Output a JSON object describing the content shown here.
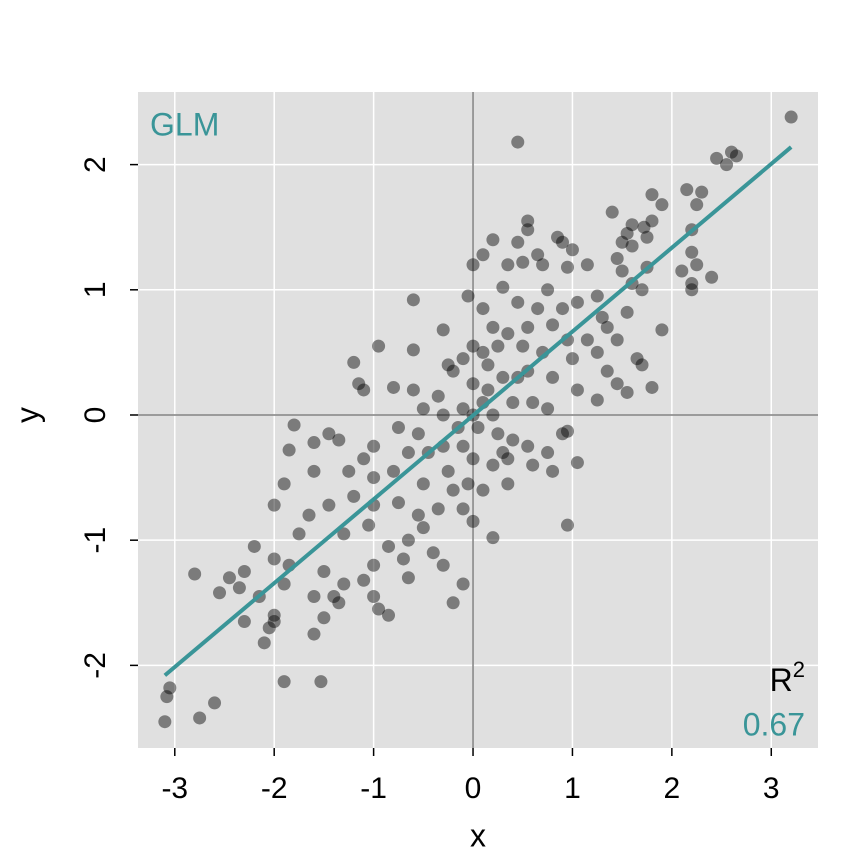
{
  "chart_data": {
    "type": "scatter",
    "x_label": "x",
    "y_label": "y",
    "xlim": [
      -3.37,
      3.47
    ],
    "ylim": [
      -2.66,
      2.58
    ],
    "xticks": [
      -3,
      -2,
      -1,
      0,
      1,
      2,
      3
    ],
    "yticks": [
      -2,
      -1,
      0,
      1,
      2
    ],
    "grid": true,
    "hlines": [
      0
    ],
    "vlines": [
      0
    ],
    "color": "#000000",
    "x": [
      3.2,
      0.45,
      2.6,
      2.65,
      2.45,
      2.55,
      2.15,
      2.3,
      1.8,
      1.9,
      2.25,
      1.4,
      1.6,
      1.72,
      1.55,
      1.8,
      2.2,
      0.55,
      0.55,
      0.45,
      0.85,
      0.9,
      0.2,
      0.35,
      0.5,
      0.65,
      0.7,
      1.0,
      0.95,
      1.15,
      1.5,
      1.6,
      1.75,
      1.45,
      1.5,
      1.75,
      2.2,
      2.25,
      2.1,
      2.4,
      2.2,
      2.2,
      1.6,
      1.9,
      1.35,
      1.55,
      1.25,
      0.0,
      0.1,
      0.3,
      -0.6,
      -0.05,
      0.1,
      0.45,
      0.65,
      0.75,
      0.9,
      1.05,
      0.8,
      0.55,
      0.35,
      0.2,
      -0.3,
      -0.6,
      -1.2,
      -0.95,
      -1.15,
      -1.1,
      -0.8,
      -0.6,
      0.1,
      0.5,
      0.7,
      0.95,
      1.15,
      1.25,
      1.45,
      1.65,
      1.7,
      1.8,
      1.55,
      1.35,
      1.05,
      1.25,
      0.8,
      0.55,
      0.3,
      0.15,
      0.0,
      -0.2,
      -0.35,
      -0.5,
      -0.1,
      0.2,
      0.4,
      0.6,
      0.75,
      0.4,
      0.25,
      0.05,
      -0.15,
      -0.3,
      -0.55,
      -0.75,
      -0.65,
      -1.0,
      -1.1,
      -1.45,
      -1.8,
      -1.85,
      -1.6,
      -1.35,
      -1.9,
      -1.6,
      -1.25,
      -1.0,
      -0.8,
      -0.5,
      -0.25,
      0.0,
      0.2,
      0.35,
      0.6,
      0.75,
      0.9,
      0.95,
      1.05,
      0.8,
      0.95,
      0.2,
      0.0,
      -0.1,
      -0.35,
      -0.55,
      -0.75,
      -1.0,
      -1.2,
      -1.45,
      -1.65,
      -2.0,
      -1.75,
      -1.3,
      -1.05,
      -0.85,
      -0.65,
      -0.4,
      -0.3,
      -0.1,
      -0.2,
      -1.0,
      -1.1,
      -1.3,
      -1.5,
      -1.85,
      -1.9,
      -2.2,
      -2.3,
      -2.45,
      -2.0,
      -1.6,
      -1.4,
      -1.0,
      -0.95,
      -0.85,
      -1.5,
      -1.6,
      -1.35,
      -2.0,
      -2.05,
      -2.0,
      -2.3,
      -2.55,
      -2.35,
      -2.15,
      -2.1,
      -2.8,
      -3.05,
      -3.08,
      -3.1,
      -2.75,
      -2.6,
      -1.9,
      -1.53,
      -0.65,
      -0.7,
      -0.5,
      0.55,
      0.35,
      0.1,
      -0.05,
      -0.2,
      0.3,
      -0.45,
      -0.3,
      -0.1,
      0.1,
      0.15,
      -0.1,
      0.25,
      0.0,
      -0.25,
      0.45,
      1.45,
      1.0,
      1.3,
      1.7,
      0.0
    ],
    "values": [
      2.38,
      2.18,
      2.1,
      2.07,
      2.05,
      2.0,
      1.8,
      1.78,
      1.76,
      1.68,
      1.68,
      1.62,
      1.52,
      1.5,
      1.45,
      1.55,
      1.48,
      1.55,
      1.48,
      1.38,
      1.42,
      1.38,
      1.4,
      1.2,
      1.22,
      1.28,
      1.2,
      1.32,
      1.18,
      1.2,
      1.38,
      1.35,
      1.42,
      1.25,
      1.15,
      1.18,
      1.3,
      1.2,
      1.15,
      1.1,
      1.05,
      1.0,
      1.05,
      0.68,
      0.7,
      0.82,
      0.95,
      1.2,
      1.28,
      1.02,
      0.92,
      0.95,
      0.85,
      0.9,
      0.85,
      1.0,
      0.85,
      0.9,
      0.72,
      0.7,
      0.65,
      0.7,
      0.68,
      0.52,
      0.42,
      0.55,
      0.25,
      0.2,
      0.22,
      0.2,
      0.5,
      0.55,
      0.5,
      0.6,
      0.6,
      0.5,
      0.6,
      0.45,
      0.4,
      0.22,
      0.18,
      0.35,
      0.2,
      0.12,
      0.3,
      0.35,
      0.3,
      0.2,
      0.25,
      0.35,
      0.15,
      0.05,
      0.05,
      0.0,
      0.1,
      0.1,
      0.05,
      -0.2,
      -0.15,
      -0.1,
      -0.1,
      -0.25,
      -0.15,
      -0.1,
      -0.3,
      -0.25,
      -0.35,
      -0.15,
      -0.08,
      -0.28,
      -0.22,
      -0.2,
      -0.55,
      -0.45,
      -0.45,
      -0.5,
      -0.45,
      -0.55,
      -0.45,
      -0.35,
      -0.4,
      -0.55,
      -0.4,
      -0.3,
      -0.15,
      -0.13,
      -0.38,
      -0.45,
      -0.88,
      -0.98,
      -0.85,
      -0.75,
      -0.75,
      -0.8,
      -0.7,
      -0.72,
      -0.65,
      -0.72,
      -0.8,
      -0.72,
      -0.95,
      -0.95,
      -0.88,
      -1.05,
      -1.0,
      -1.1,
      -1.2,
      -1.35,
      -1.5,
      -1.2,
      -1.32,
      -1.35,
      -1.25,
      -1.2,
      -1.35,
      -1.05,
      -1.25,
      -1.3,
      -1.15,
      -1.45,
      -1.45,
      -1.45,
      -1.55,
      -1.6,
      -1.62,
      -1.75,
      -1.5,
      -1.6,
      -1.7,
      -1.65,
      -1.65,
      -1.42,
      -1.38,
      -1.45,
      -1.82,
      -1.27,
      -2.18,
      -2.25,
      -2.45,
      -2.42,
      -2.3,
      -2.13,
      -2.13,
      -1.3,
      -1.15,
      -0.9,
      -0.25,
      -0.35,
      -0.6,
      -0.55,
      -0.6,
      -0.3,
      -0.3,
      0.0,
      -0.25,
      0.1,
      0.4,
      0.45,
      0.55,
      0.55,
      0.4,
      0.3,
      0.25,
      0.45,
      0.78,
      1.0,
      0.0
    ],
    "fit": {
      "name": "GLM",
      "color": "#3a9598",
      "x": [
        -3.1,
        3.2
      ],
      "values": [
        -2.08,
        2.14
      ]
    },
    "r2": {
      "text": "R",
      "sup": "2",
      "value": 0.67,
      "value_label": "0.67"
    }
  }
}
